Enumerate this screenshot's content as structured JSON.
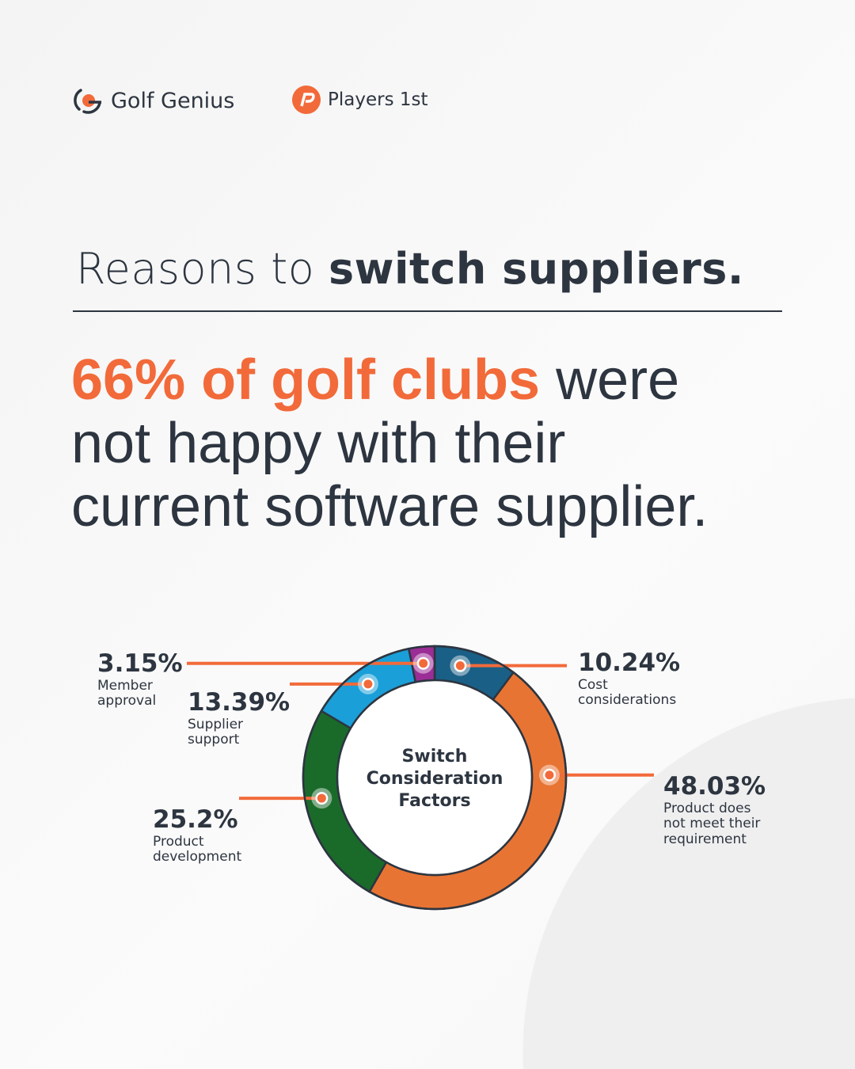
{
  "logos": {
    "golf_genius": "Golf Genius",
    "players_first": "Players 1st"
  },
  "title": {
    "regular": "Reasons to ",
    "bold": "switch suppliers."
  },
  "headline": {
    "highlight": "66% of golf clubs",
    "rest1": " were",
    "line2": "not happy with their",
    "line3": "current software supplier."
  },
  "colors": {
    "accent": "#f26a3a",
    "text": "#2d3540"
  },
  "chart_data": {
    "type": "pie",
    "variant": "donut",
    "center_label": "Switch Consideration Factors",
    "start": "top",
    "direction": "clockwise",
    "slices": [
      {
        "label": "Cost considerations",
        "value": 10.24,
        "display": "10.24%",
        "color": "#1a5f86"
      },
      {
        "label": "Product does not meet their requirement",
        "value": 48.03,
        "display": "48.03%",
        "color": "#e87433"
      },
      {
        "label": "Product development",
        "value": 25.2,
        "display": "25.2%",
        "color": "#1a6b2a"
      },
      {
        "label": "Supplier support",
        "value": 13.39,
        "display": "13.39%",
        "color": "#1a9fd8"
      },
      {
        "label": "Member approval",
        "value": 3.15,
        "display": "3.15%",
        "color": "#9b2d96"
      }
    ]
  }
}
